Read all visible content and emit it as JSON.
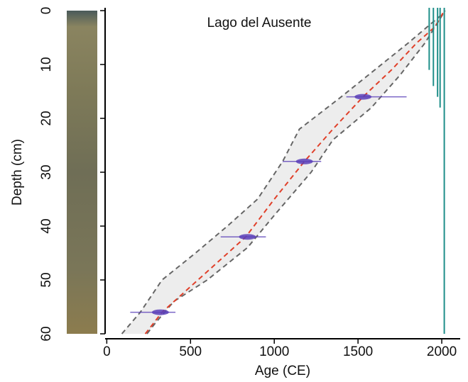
{
  "chart_data": {
    "type": "age-depth",
    "title": "Lago del Ausente",
    "x_label": "Age (CE)",
    "y_label": "Depth (cm)",
    "xlim": [
      -10,
      2110
    ],
    "ylim": [
      0,
      60
    ],
    "xticks": [
      0,
      500,
      1000,
      1500,
      2000
    ],
    "yticks": [
      0,
      10,
      20,
      30,
      40,
      50,
      60
    ],
    "median": {
      "color": "#e0402a",
      "x": [
        230,
        330,
        580,
        830,
        1000,
        1180,
        1350,
        1530,
        1700,
        1850,
        1960,
        2015
      ],
      "y": [
        60,
        56,
        49,
        42,
        35,
        28,
        22,
        16,
        11,
        6,
        3,
        0
      ]
    },
    "bounds": [
      {
        "color": "#666666",
        "x": [
          90,
          200,
          330,
          530,
          720,
          900,
          1050,
          1150,
          1400,
          1600,
          1800,
          1990
        ],
        "y": [
          60,
          56,
          50,
          45,
          40,
          35,
          28,
          22,
          16,
          11,
          6,
          1
        ]
      },
      {
        "color": "#666666",
        "x": [
          240,
          290,
          400,
          600,
          840,
          1000,
          1220,
          1350,
          1580,
          1750,
          1900,
          2020
        ],
        "y": [
          60,
          58,
          54,
          50,
          44,
          38,
          30,
          24,
          18,
          12,
          6,
          0
        ]
      }
    ],
    "dates": {
      "color": "#5a3fb8",
      "depth": [
        56,
        42,
        28,
        16
      ],
      "age": [
        320,
        840,
        1180,
        1530
      ],
      "low": [
        140,
        680,
        1050,
        1430
      ],
      "high": [
        410,
        950,
        1280,
        1790
      ]
    },
    "profiles": {
      "color": "#1f8f8a",
      "age": [
        1925,
        1950,
        1975,
        1990,
        2015
      ],
      "bottom": [
        11,
        14,
        16,
        18,
        60
      ]
    }
  }
}
